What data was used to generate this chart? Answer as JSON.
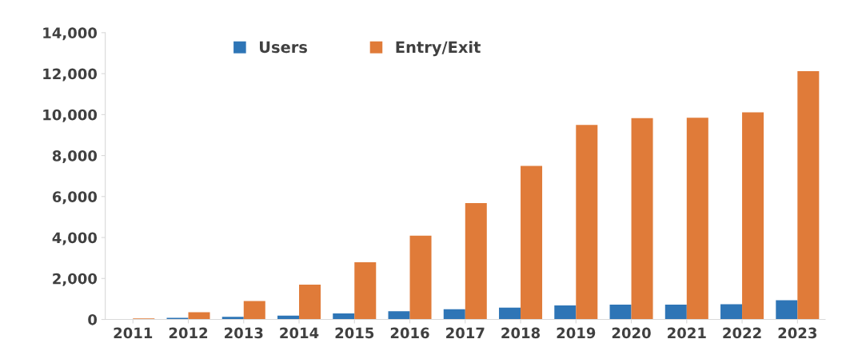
{
  "chart_data": {
    "type": "bar",
    "categories": [
      "2011",
      "2012",
      "2013",
      "2014",
      "2015",
      "2016",
      "2017",
      "2018",
      "2019",
      "2020",
      "2021",
      "2022",
      "2023"
    ],
    "series": [
      {
        "name": "Users",
        "color": "#2e75b6",
        "values": [
          null,
          80,
          130,
          190,
          290,
          400,
          500,
          580,
          680,
          720,
          720,
          740,
          940
        ]
      },
      {
        "name": "Entry/Exit",
        "color": "#e07b39",
        "values": [
          50,
          350,
          900,
          1700,
          2790,
          4090,
          5680,
          7500,
          9500,
          9830,
          9850,
          10110,
          12120
        ]
      }
    ],
    "ylim": [
      0,
      14000
    ],
    "yticks": [
      {
        "value": 0,
        "label": "0"
      },
      {
        "value": 2000,
        "label": "2,000"
      },
      {
        "value": 4000,
        "label": "4,000"
      },
      {
        "value": 6000,
        "label": "6,000"
      },
      {
        "value": 8000,
        "label": "8,000"
      },
      {
        "value": 10000,
        "label": "10,000"
      },
      {
        "value": 12000,
        "label": "12,000"
      },
      {
        "value": 14000,
        "label": "14,000"
      }
    ],
    "grid": false,
    "legend": "top"
  }
}
